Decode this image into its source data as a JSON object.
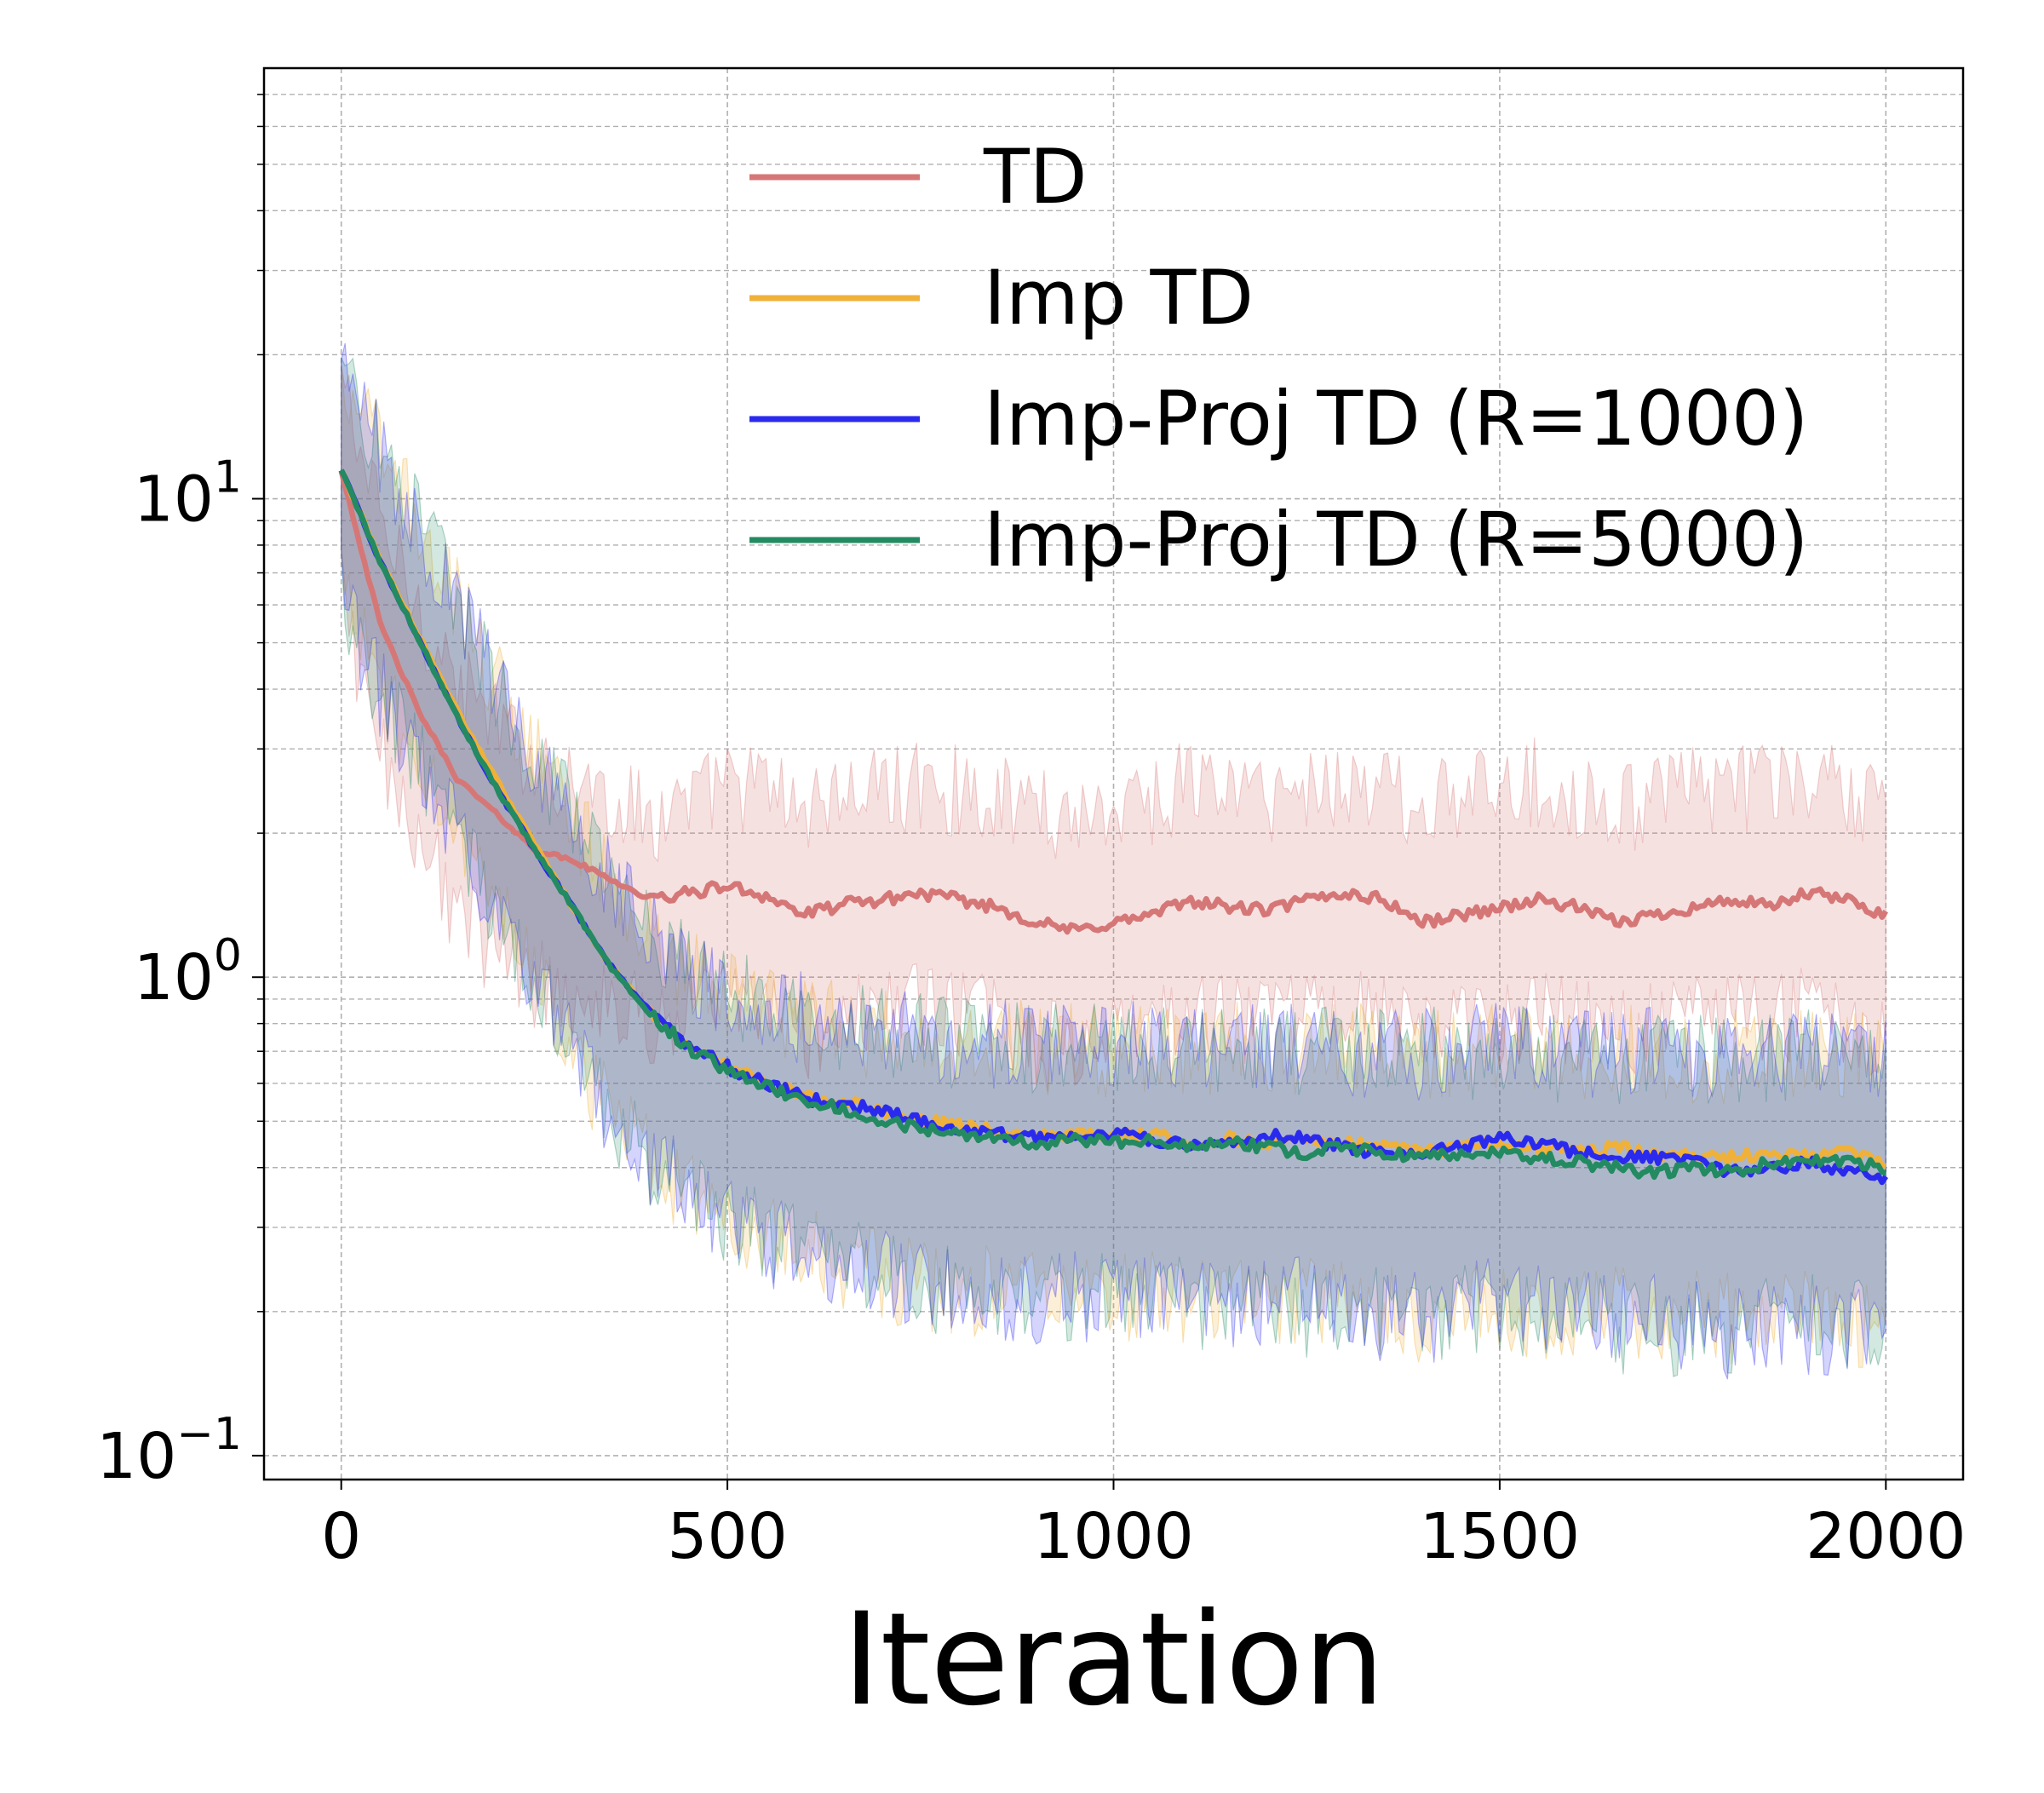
{
  "chart_data": {
    "type": "line",
    "title": "",
    "xlabel": "Iteration",
    "ylabel": "",
    "xlim": [
      -100,
      2100
    ],
    "ylim_log10": [
      -1.05,
      1.9
    ],
    "yscale": "log",
    "grid": true,
    "legend_position": "top-right",
    "x_ticks": [
      {
        "value": 0,
        "label": "0"
      },
      {
        "value": 500,
        "label": "500"
      },
      {
        "value": 1000,
        "label": "1000"
      },
      {
        "value": 1500,
        "label": "1500"
      },
      {
        "value": 2000,
        "label": "2000"
      }
    ],
    "y_ticks": [
      {
        "exp": -1,
        "base": "10",
        "sup": "−1"
      },
      {
        "exp": 0,
        "base": "10",
        "sup": "0"
      },
      {
        "exp": 1,
        "base": "10",
        "sup": "1"
      }
    ],
    "x": [
      0,
      50,
      100,
      150,
      200,
      250,
      300,
      350,
      400,
      450,
      500,
      550,
      600,
      650,
      700,
      750,
      800,
      850,
      900,
      950,
      1000,
      1050,
      1100,
      1150,
      1200,
      1250,
      1300,
      1350,
      1400,
      1450,
      1500,
      1550,
      1600,
      1650,
      1700,
      1750,
      1800,
      1850,
      1900,
      1950,
      2000
    ],
    "series": [
      {
        "name": "TD",
        "color": "#d67777",
        "values": [
          11.5,
          5.5,
          3.6,
          2.6,
          2.2,
          1.85,
          1.75,
          1.6,
          1.45,
          1.5,
          1.55,
          1.48,
          1.35,
          1.42,
          1.45,
          1.5,
          1.45,
          1.4,
          1.3,
          1.25,
          1.3,
          1.35,
          1.45,
          1.4,
          1.38,
          1.45,
          1.5,
          1.45,
          1.3,
          1.35,
          1.4,
          1.45,
          1.4,
          1.3,
          1.35,
          1.4,
          1.45,
          1.4,
          1.5,
          1.45,
          1.35
        ],
        "upper": [
          18,
          9,
          6,
          4.2,
          3.4,
          2.9,
          2.6,
          2.4,
          2.2,
          2.3,
          2.6,
          2.5,
          2.3,
          2.4,
          2.5,
          2.6,
          2.5,
          2.4,
          2.3,
          2.2,
          2.3,
          2.4,
          2.6,
          2.5,
          2.4,
          2.5,
          2.6,
          2.5,
          2.3,
          2.4,
          2.5,
          2.6,
          2.5,
          2.3,
          2.4,
          2.5,
          2.6,
          2.5,
          2.6,
          2.5,
          2.2
        ],
        "lower": [
          6.5,
          3.0,
          2.0,
          1.4,
          1.15,
          1.0,
          0.95,
          0.9,
          0.82,
          0.85,
          0.88,
          0.85,
          0.78,
          0.82,
          0.85,
          0.88,
          0.85,
          0.82,
          0.75,
          0.72,
          0.75,
          0.78,
          0.85,
          0.82,
          0.8,
          0.85,
          0.88,
          0.85,
          0.78,
          0.8,
          0.82,
          0.85,
          0.82,
          0.78,
          0.8,
          0.82,
          0.85,
          0.82,
          0.88,
          0.85,
          0.75
        ]
      },
      {
        "name": "Imp TD",
        "color": "#efb13a",
        "values": [
          11.5,
          7.5,
          5.2,
          3.6,
          2.6,
          1.9,
          1.4,
          1.05,
          0.85,
          0.72,
          0.65,
          0.6,
          0.57,
          0.55,
          0.52,
          0.5,
          0.49,
          0.48,
          0.47,
          0.47,
          0.46,
          0.47,
          0.45,
          0.46,
          0.45,
          0.46,
          0.45,
          0.44,
          0.43,
          0.44,
          0.45,
          0.44,
          0.43,
          0.44,
          0.43,
          0.42,
          0.42,
          0.43,
          0.42,
          0.43,
          0.41
        ],
        "upper": [
          18,
          13,
          9,
          6.2,
          4.3,
          3.0,
          2.2,
          1.6,
          1.25,
          1.05,
          0.95,
          0.88,
          0.84,
          0.8,
          0.78,
          0.76,
          0.75,
          0.74,
          0.73,
          0.73,
          0.72,
          0.73,
          0.72,
          0.73,
          0.72,
          0.73,
          0.72,
          0.72,
          0.71,
          0.72,
          0.72,
          0.72,
          0.71,
          0.72,
          0.71,
          0.7,
          0.7,
          0.71,
          0.7,
          0.71,
          0.7
        ],
        "lower": [
          6.5,
          4.0,
          2.9,
          2.0,
          1.4,
          1.0,
          0.72,
          0.52,
          0.42,
          0.36,
          0.32,
          0.29,
          0.27,
          0.26,
          0.245,
          0.235,
          0.23,
          0.225,
          0.22,
          0.22,
          0.215,
          0.22,
          0.21,
          0.215,
          0.21,
          0.215,
          0.21,
          0.205,
          0.2,
          0.205,
          0.21,
          0.205,
          0.2,
          0.205,
          0.2,
          0.2,
          0.2,
          0.2,
          0.2,
          0.2,
          0.19
        ]
      },
      {
        "name": "Imp-Proj TD (R=1000)",
        "color": "#2a2aef",
        "values": [
          11.5,
          7.4,
          5.1,
          3.5,
          2.5,
          1.85,
          1.4,
          1.05,
          0.85,
          0.72,
          0.65,
          0.6,
          0.56,
          0.54,
          0.53,
          0.5,
          0.48,
          0.47,
          0.46,
          0.47,
          0.47,
          0.46,
          0.44,
          0.45,
          0.47,
          0.46,
          0.44,
          0.43,
          0.43,
          0.44,
          0.46,
          0.45,
          0.43,
          0.42,
          0.42,
          0.41,
          0.39,
          0.4,
          0.41,
          0.39,
          0.38
        ],
        "upper": [
          18,
          13,
          9,
          6.2,
          4.3,
          3.0,
          2.2,
          1.6,
          1.25,
          1.05,
          0.95,
          0.88,
          0.84,
          0.8,
          0.78,
          0.76,
          0.75,
          0.74,
          0.73,
          0.73,
          0.73,
          0.73,
          0.72,
          0.73,
          0.73,
          0.73,
          0.72,
          0.71,
          0.71,
          0.72,
          0.73,
          0.72,
          0.71,
          0.71,
          0.71,
          0.7,
          0.69,
          0.7,
          0.7,
          0.69,
          0.68
        ],
        "lower": [
          6.5,
          4.0,
          2.9,
          2.0,
          1.4,
          1.0,
          0.72,
          0.52,
          0.42,
          0.36,
          0.32,
          0.29,
          0.27,
          0.26,
          0.245,
          0.235,
          0.225,
          0.22,
          0.215,
          0.22,
          0.22,
          0.215,
          0.205,
          0.21,
          0.22,
          0.215,
          0.205,
          0.2,
          0.2,
          0.205,
          0.215,
          0.21,
          0.2,
          0.195,
          0.195,
          0.19,
          0.185,
          0.19,
          0.19,
          0.185,
          0.18
        ]
      },
      {
        "name": "Imp-Proj TD (R=5000)",
        "color": "#238a62",
        "values": [
          11.5,
          7.4,
          5.1,
          3.5,
          2.5,
          1.85,
          1.4,
          1.04,
          0.84,
          0.71,
          0.64,
          0.59,
          0.55,
          0.53,
          0.5,
          0.48,
          0.47,
          0.46,
          0.45,
          0.46,
          0.45,
          0.46,
          0.44,
          0.45,
          0.44,
          0.43,
          0.44,
          0.43,
          0.42,
          0.43,
          0.43,
          0.42,
          0.41,
          0.4,
          0.39,
          0.4,
          0.39,
          0.41,
          0.42,
          0.41,
          0.4
        ],
        "upper": [
          18,
          13,
          9,
          6.2,
          4.3,
          3.0,
          2.2,
          1.6,
          1.25,
          1.05,
          0.95,
          0.88,
          0.84,
          0.8,
          0.78,
          0.76,
          0.75,
          0.74,
          0.73,
          0.73,
          0.72,
          0.73,
          0.72,
          0.73,
          0.72,
          0.72,
          0.72,
          0.71,
          0.71,
          0.71,
          0.71,
          0.71,
          0.7,
          0.7,
          0.69,
          0.7,
          0.69,
          0.7,
          0.71,
          0.7,
          0.7
        ],
        "lower": [
          6.5,
          4.0,
          2.9,
          2.0,
          1.4,
          1.0,
          0.72,
          0.52,
          0.42,
          0.36,
          0.32,
          0.29,
          0.27,
          0.26,
          0.24,
          0.23,
          0.225,
          0.22,
          0.215,
          0.22,
          0.215,
          0.22,
          0.21,
          0.215,
          0.21,
          0.205,
          0.21,
          0.205,
          0.2,
          0.205,
          0.205,
          0.2,
          0.195,
          0.19,
          0.185,
          0.19,
          0.185,
          0.195,
          0.2,
          0.195,
          0.19
        ]
      }
    ]
  }
}
